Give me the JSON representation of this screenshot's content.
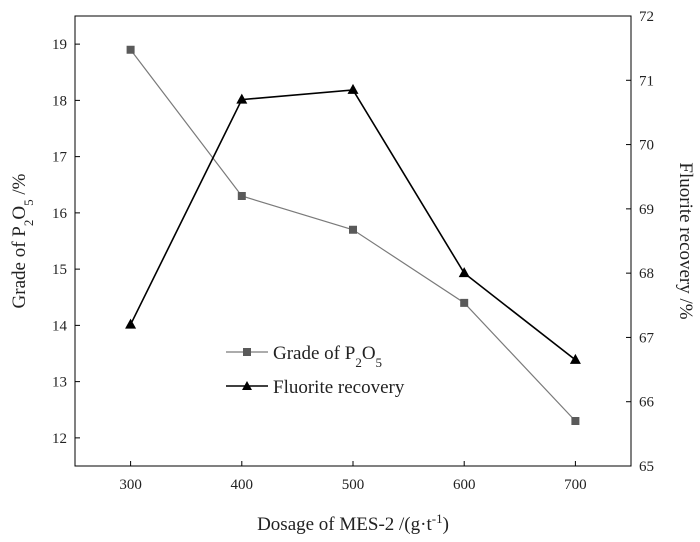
{
  "chart_data": {
    "type": "line",
    "title": "",
    "x": [
      300,
      400,
      500,
      600,
      700
    ],
    "xlim": [
      250,
      750
    ],
    "xticks": [
      300,
      400,
      500,
      600,
      700
    ],
    "xlabel": {
      "prefix": "Dosage of MES-2 /(g·t",
      "sup": "-1",
      "suffix": ")"
    },
    "left_axis": {
      "label": {
        "prefix": "Grade of P",
        "sub1": "2",
        "mid": "O",
        "sub2": "5",
        "suffix": " /%"
      },
      "ylim": [
        11.5,
        19.5
      ],
      "ticks": [
        12,
        13,
        14,
        15,
        16,
        17,
        18,
        19
      ]
    },
    "right_axis": {
      "label": "Fluorite recovery /%",
      "ylim": [
        65,
        72
      ],
      "ticks": [
        65,
        66,
        67,
        68,
        69,
        70,
        71,
        72
      ]
    },
    "series": [
      {
        "name": {
          "prefix": "Grade of P",
          "sub1": "2",
          "mid": "O",
          "sub2": "5"
        },
        "axis": "left",
        "marker": "square",
        "color": "#7a7a7a",
        "values": [
          18.9,
          16.3,
          15.7,
          14.4,
          12.3
        ]
      },
      {
        "name": "Fluorite recovery",
        "axis": "right",
        "marker": "triangle",
        "color": "#000000",
        "values": [
          67.2,
          70.7,
          70.85,
          68.0,
          66.65
        ]
      }
    ],
    "legend_position": "bottom-left",
    "grid": false
  }
}
